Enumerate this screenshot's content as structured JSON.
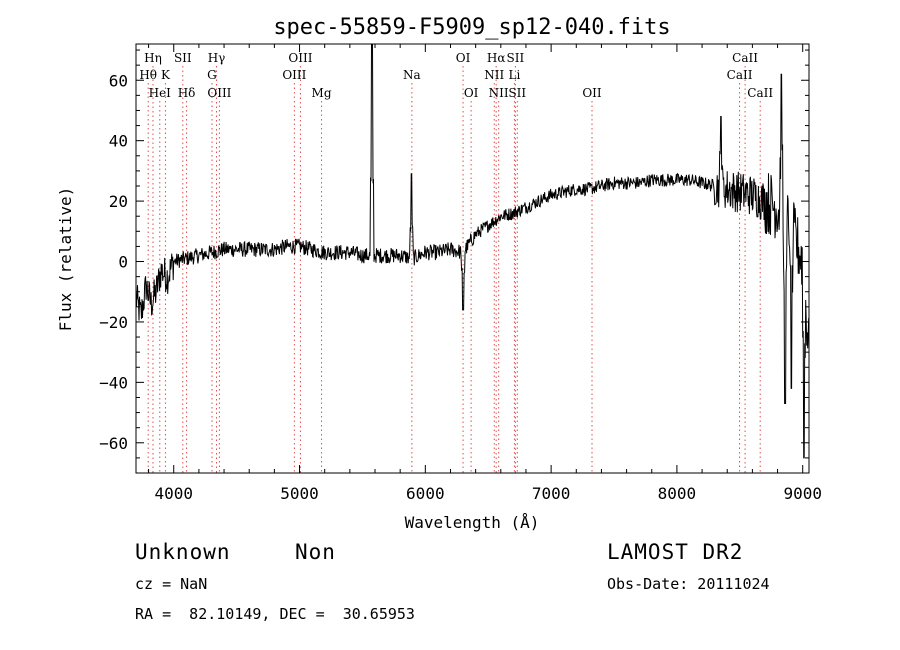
{
  "chart_data": {
    "type": "line",
    "title": "spec-55859-F5909_sp12-040.fits",
    "xlabel": "Wavelength (Å)",
    "ylabel": "Flux (relative)",
    "xlim": [
      3700,
      9050
    ],
    "ylim": [
      -70,
      72
    ],
    "xticks": [
      4000,
      5000,
      6000,
      7000,
      8000,
      9000
    ],
    "yticks": [
      -60,
      -40,
      -20,
      0,
      20,
      40,
      60
    ],
    "line_color": "#000000",
    "marker_color": "#e05050",
    "spectrum_anchors": [
      [
        3700,
        -12
      ],
      [
        3740,
        -18
      ],
      [
        3780,
        -8
      ],
      [
        3820,
        -14
      ],
      [
        3860,
        -10
      ],
      [
        3900,
        -3
      ],
      [
        3950,
        -5
      ],
      [
        4000,
        0
      ],
      [
        4100,
        1
      ],
      [
        4200,
        2
      ],
      [
        4300,
        3
      ],
      [
        4400,
        4
      ],
      [
        4500,
        4
      ],
      [
        4600,
        4
      ],
      [
        4700,
        4
      ],
      [
        4800,
        4
      ],
      [
        4900,
        5
      ],
      [
        5000,
        5
      ],
      [
        5100,
        4
      ],
      [
        5200,
        3
      ],
      [
        5300,
        3
      ],
      [
        5400,
        3
      ],
      [
        5500,
        2
      ],
      [
        5600,
        2
      ],
      [
        5700,
        2
      ],
      [
        5800,
        2
      ],
      [
        5900,
        1
      ],
      [
        6000,
        3
      ],
      [
        6100,
        3
      ],
      [
        6200,
        4
      ],
      [
        6300,
        3
      ],
      [
        6400,
        9
      ],
      [
        6500,
        12
      ],
      [
        6600,
        15
      ],
      [
        6700,
        16
      ],
      [
        6800,
        18
      ],
      [
        6900,
        20
      ],
      [
        7000,
        22
      ],
      [
        7100,
        23
      ],
      [
        7200,
        24
      ],
      [
        7300,
        24
      ],
      [
        7400,
        25
      ],
      [
        7500,
        26
      ],
      [
        7600,
        26
      ],
      [
        7700,
        26
      ],
      [
        7800,
        27
      ],
      [
        7900,
        27
      ],
      [
        8000,
        27
      ],
      [
        8100,
        27
      ],
      [
        8200,
        26
      ],
      [
        8300,
        25
      ],
      [
        8400,
        24
      ],
      [
        8500,
        23
      ],
      [
        8600,
        22
      ],
      [
        8700,
        20
      ],
      [
        8800,
        18
      ],
      [
        8900,
        12
      ],
      [
        9000,
        0
      ],
      [
        9050,
        -30
      ]
    ],
    "spikes": [
      {
        "x": 5577,
        "y": 72
      },
      {
        "x": 5890,
        "y": 29
      },
      {
        "x": 6300,
        "y": -16
      },
      {
        "x": 8350,
        "y": 48
      },
      {
        "x": 8830,
        "y": 62
      },
      {
        "x": 8860,
        "y": -47
      },
      {
        "x": 8910,
        "y": -42
      },
      {
        "x": 9010,
        "y": -65
      }
    ],
    "line_markers": [
      {
        "label": "Hη",
        "x": 3835,
        "row": 0
      },
      {
        "label": "Hθ",
        "x": 3797,
        "row": 1
      },
      {
        "label": "HeI",
        "x": 3889,
        "row": 2
      },
      {
        "label": "SII",
        "x": 4072,
        "row": 0
      },
      {
        "label": "K",
        "x": 3934,
        "row": 1
      },
      {
        "label": "Hδ",
        "x": 4102,
        "row": 2
      },
      {
        "label": "Hγ",
        "x": 4340,
        "row": 0
      },
      {
        "label": "G",
        "x": 4304,
        "row": 1
      },
      {
        "label": "OIII",
        "x": 4363,
        "row": 2
      },
      {
        "label": "OIII",
        "x": 5007,
        "row": 0
      },
      {
        "label": "OIII",
        "x": 4959,
        "row": 1
      },
      {
        "label": "Mg",
        "x": 5175,
        "row": 2
      },
      {
        "label": "Na",
        "x": 5893,
        "row": 1
      },
      {
        "label": "OI",
        "x": 6300,
        "row": 0
      },
      {
        "label": "OI",
        "x": 6364,
        "row": 2
      },
      {
        "label": "Hα",
        "x": 6563,
        "row": 0
      },
      {
        "label": "SII",
        "x": 6716,
        "row": 0
      },
      {
        "label": "NII",
        "x": 6548,
        "row": 1
      },
      {
        "label": "Li",
        "x": 6708,
        "row": 1
      },
      {
        "label": "NII",
        "x": 6583,
        "row": 2
      },
      {
        "label": "SII",
        "x": 6731,
        "row": 2
      },
      {
        "label": "OII",
        "x": 7325,
        "row": 2
      },
      {
        "label": "CaII",
        "x": 8542,
        "row": 0
      },
      {
        "label": "CaII",
        "x": 8498,
        "row": 1
      },
      {
        "label": "CaII",
        "x": 8662,
        "row": 2
      }
    ]
  },
  "info": {
    "class": "Unknown",
    "subclass": "Non",
    "survey": "LAMOST DR2",
    "cz": "cz = NaN",
    "obs_date": "Obs-Date: 20111024",
    "coords": "RA =  82.10149, DEC =  30.65953"
  }
}
